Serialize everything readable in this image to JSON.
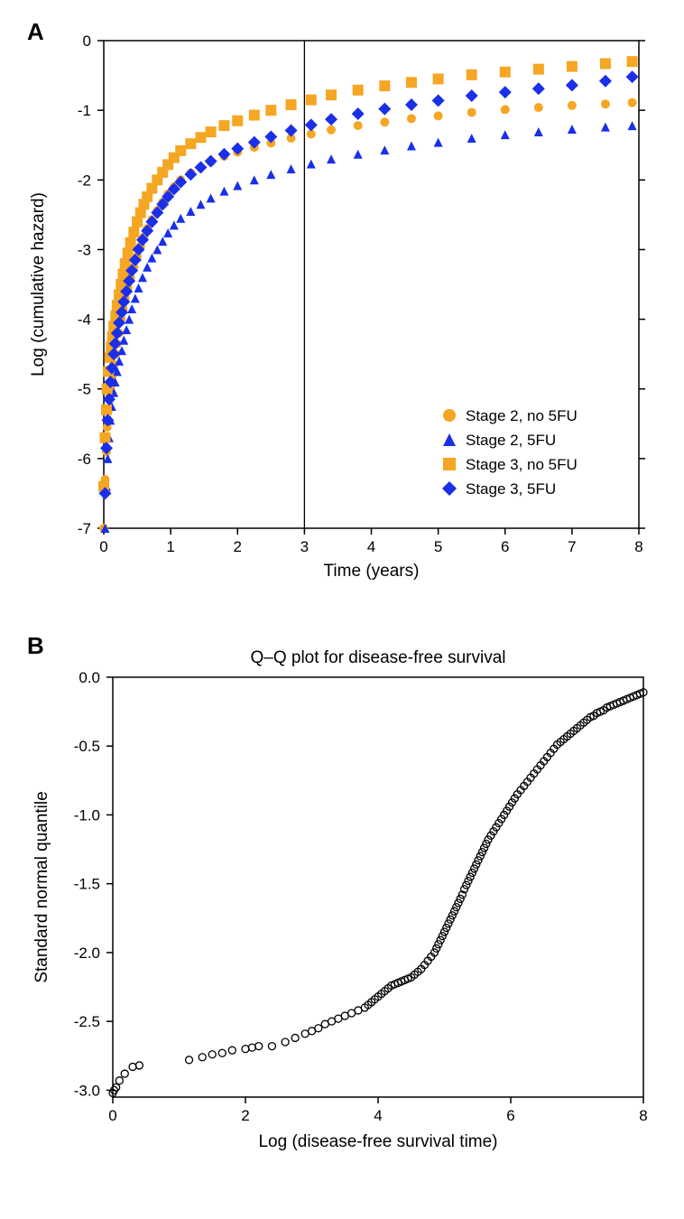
{
  "panelA": {
    "label": "A",
    "type": "scatter-line",
    "xlabel": "Time (years)",
    "ylabel": "Log (cumulative hazard)",
    "xlim": [
      0,
      8
    ],
    "ylim": [
      -7,
      0
    ],
    "xtick_step": 1,
    "ytick_step": 1,
    "background_color": "#ffffff",
    "axis_color": "#000000",
    "vline_x": 3,
    "label_fontsize": 19,
    "tick_fontsize": 17,
    "legend_fontsize": 17,
    "legend_pos": "lower-right",
    "series": [
      {
        "name": "Stage 2, no 5FU",
        "color": "#f5a623",
        "marker": "circle",
        "marker_size": 5,
        "data": [
          [
            0.0,
            -7.0
          ],
          [
            0.02,
            -6.3
          ],
          [
            0.04,
            -5.9
          ],
          [
            0.05,
            -5.55
          ],
          [
            0.07,
            -5.3
          ],
          [
            0.09,
            -5.1
          ],
          [
            0.11,
            -4.95
          ],
          [
            0.13,
            -4.8
          ],
          [
            0.15,
            -4.65
          ],
          [
            0.18,
            -4.5
          ],
          [
            0.2,
            -4.35
          ],
          [
            0.23,
            -4.2
          ],
          [
            0.26,
            -4.0
          ],
          [
            0.29,
            -3.85
          ],
          [
            0.32,
            -3.7
          ],
          [
            0.36,
            -3.55
          ],
          [
            0.4,
            -3.4
          ],
          [
            0.45,
            -3.25
          ],
          [
            0.5,
            -3.1
          ],
          [
            0.55,
            -2.95
          ],
          [
            0.6,
            -2.82
          ],
          [
            0.65,
            -2.7
          ],
          [
            0.72,
            -2.57
          ],
          [
            0.8,
            -2.44
          ],
          [
            0.88,
            -2.32
          ],
          [
            0.96,
            -2.2
          ],
          [
            1.05,
            -2.1
          ],
          [
            1.15,
            -2.0
          ],
          [
            1.3,
            -1.9
          ],
          [
            1.45,
            -1.82
          ],
          [
            1.6,
            -1.74
          ],
          [
            1.8,
            -1.66
          ],
          [
            2.0,
            -1.6
          ],
          [
            2.25,
            -1.53
          ],
          [
            2.5,
            -1.47
          ],
          [
            2.8,
            -1.4
          ],
          [
            3.1,
            -1.34
          ],
          [
            3.4,
            -1.28
          ],
          [
            3.8,
            -1.22
          ],
          [
            4.2,
            -1.17
          ],
          [
            4.6,
            -1.12
          ],
          [
            5.0,
            -1.08
          ],
          [
            5.5,
            -1.03
          ],
          [
            6.0,
            -0.99
          ],
          [
            6.5,
            -0.96
          ],
          [
            7.0,
            -0.93
          ],
          [
            7.5,
            -0.91
          ],
          [
            7.9,
            -0.89
          ]
        ]
      },
      {
        "name": "Stage 2, 5FU",
        "color": "#1a2fe8",
        "marker": "triangle",
        "marker_size": 5,
        "data": [
          [
            0.02,
            -7.0
          ],
          [
            0.04,
            -6.4
          ],
          [
            0.06,
            -6.0
          ],
          [
            0.08,
            -5.7
          ],
          [
            0.1,
            -5.45
          ],
          [
            0.12,
            -5.25
          ],
          [
            0.15,
            -5.05
          ],
          [
            0.17,
            -4.9
          ],
          [
            0.2,
            -4.75
          ],
          [
            0.23,
            -4.6
          ],
          [
            0.27,
            -4.45
          ],
          [
            0.3,
            -4.3
          ],
          [
            0.34,
            -4.15
          ],
          [
            0.38,
            -4.0
          ],
          [
            0.42,
            -3.85
          ],
          [
            0.47,
            -3.7
          ],
          [
            0.52,
            -3.55
          ],
          [
            0.58,
            -3.4
          ],
          [
            0.65,
            -3.25
          ],
          [
            0.72,
            -3.12
          ],
          [
            0.8,
            -3.0
          ],
          [
            0.88,
            -2.88
          ],
          [
            0.96,
            -2.76
          ],
          [
            1.05,
            -2.65
          ],
          [
            1.15,
            -2.55
          ],
          [
            1.3,
            -2.45
          ],
          [
            1.45,
            -2.35
          ],
          [
            1.6,
            -2.26
          ],
          [
            1.8,
            -2.16
          ],
          [
            2.0,
            -2.08
          ],
          [
            2.25,
            -2.0
          ],
          [
            2.5,
            -1.92
          ],
          [
            2.8,
            -1.84
          ],
          [
            3.1,
            -1.77
          ],
          [
            3.4,
            -1.7
          ],
          [
            3.8,
            -1.63
          ],
          [
            4.2,
            -1.57
          ],
          [
            4.6,
            -1.51
          ],
          [
            5.0,
            -1.46
          ],
          [
            5.5,
            -1.4
          ],
          [
            6.0,
            -1.35
          ],
          [
            6.5,
            -1.31
          ],
          [
            7.0,
            -1.27
          ],
          [
            7.5,
            -1.24
          ],
          [
            7.9,
            -1.22
          ]
        ]
      },
      {
        "name": "Stage 3, no 5FU",
        "color": "#f5a623",
        "marker": "square",
        "marker_size": 6,
        "data": [
          [
            0.0,
            -6.4
          ],
          [
            0.02,
            -5.7
          ],
          [
            0.04,
            -5.3
          ],
          [
            0.05,
            -5.0
          ],
          [
            0.07,
            -4.75
          ],
          [
            0.09,
            -4.55
          ],
          [
            0.11,
            -4.4
          ],
          [
            0.13,
            -4.25
          ],
          [
            0.15,
            -4.1
          ],
          [
            0.18,
            -3.95
          ],
          [
            0.2,
            -3.8
          ],
          [
            0.23,
            -3.65
          ],
          [
            0.26,
            -3.5
          ],
          [
            0.29,
            -3.35
          ],
          [
            0.32,
            -3.2
          ],
          [
            0.36,
            -3.05
          ],
          [
            0.4,
            -2.9
          ],
          [
            0.45,
            -2.75
          ],
          [
            0.5,
            -2.6
          ],
          [
            0.55,
            -2.47
          ],
          [
            0.6,
            -2.35
          ],
          [
            0.65,
            -2.24
          ],
          [
            0.72,
            -2.12
          ],
          [
            0.8,
            -2.0
          ],
          [
            0.88,
            -1.89
          ],
          [
            0.96,
            -1.78
          ],
          [
            1.05,
            -1.68
          ],
          [
            1.15,
            -1.58
          ],
          [
            1.3,
            -1.48
          ],
          [
            1.45,
            -1.39
          ],
          [
            1.6,
            -1.31
          ],
          [
            1.8,
            -1.22
          ],
          [
            2.0,
            -1.15
          ],
          [
            2.25,
            -1.07
          ],
          [
            2.5,
            -1.0
          ],
          [
            2.8,
            -0.92
          ],
          [
            3.1,
            -0.85
          ],
          [
            3.4,
            -0.78
          ],
          [
            3.8,
            -0.71
          ],
          [
            4.2,
            -0.65
          ],
          [
            4.6,
            -0.6
          ],
          [
            5.0,
            -0.55
          ],
          [
            5.5,
            -0.49
          ],
          [
            6.0,
            -0.45
          ],
          [
            6.5,
            -0.41
          ],
          [
            7.0,
            -0.37
          ],
          [
            7.5,
            -0.33
          ],
          [
            7.9,
            -0.3
          ]
        ]
      },
      {
        "name": "Stage 3, 5FU",
        "color": "#1a2fe8",
        "marker": "diamond",
        "marker_size": 7,
        "data": [
          [
            0.02,
            -6.5
          ],
          [
            0.04,
            -5.85
          ],
          [
            0.06,
            -5.45
          ],
          [
            0.08,
            -5.15
          ],
          [
            0.1,
            -4.9
          ],
          [
            0.12,
            -4.7
          ],
          [
            0.15,
            -4.5
          ],
          [
            0.17,
            -4.35
          ],
          [
            0.2,
            -4.2
          ],
          [
            0.23,
            -4.05
          ],
          [
            0.27,
            -3.9
          ],
          [
            0.3,
            -3.75
          ],
          [
            0.34,
            -3.6
          ],
          [
            0.38,
            -3.45
          ],
          [
            0.42,
            -3.3
          ],
          [
            0.47,
            -3.15
          ],
          [
            0.52,
            -3.0
          ],
          [
            0.58,
            -2.86
          ],
          [
            0.65,
            -2.73
          ],
          [
            0.72,
            -2.6
          ],
          [
            0.8,
            -2.47
          ],
          [
            0.88,
            -2.35
          ],
          [
            0.96,
            -2.24
          ],
          [
            1.05,
            -2.13
          ],
          [
            1.15,
            -2.03
          ],
          [
            1.3,
            -1.92
          ],
          [
            1.45,
            -1.82
          ],
          [
            1.6,
            -1.73
          ],
          [
            1.8,
            -1.63
          ],
          [
            2.0,
            -1.55
          ],
          [
            2.25,
            -1.46
          ],
          [
            2.5,
            -1.38
          ],
          [
            2.8,
            -1.29
          ],
          [
            3.1,
            -1.21
          ],
          [
            3.4,
            -1.13
          ],
          [
            3.8,
            -1.05
          ],
          [
            4.2,
            -0.98
          ],
          [
            4.6,
            -0.92
          ],
          [
            5.0,
            -0.86
          ],
          [
            5.5,
            -0.79
          ],
          [
            6.0,
            -0.74
          ],
          [
            6.5,
            -0.69
          ],
          [
            7.0,
            -0.64
          ],
          [
            7.5,
            -0.58
          ],
          [
            7.9,
            -0.52
          ]
        ]
      }
    ],
    "legend": [
      {
        "label": "Stage 2, no 5FU",
        "color": "#f5a623",
        "marker": "circle",
        "size": 7
      },
      {
        "label": "Stage 2, 5FU",
        "color": "#1a2fe8",
        "marker": "triangle",
        "size": 7
      },
      {
        "label": "Stage 3, no 5FU",
        "color": "#f5a623",
        "marker": "square",
        "size": 7
      },
      {
        "label": "Stage 3, 5FU",
        "color": "#1a2fe8",
        "marker": "diamond",
        "size": 8
      }
    ]
  },
  "panelB": {
    "label": "B",
    "type": "qq-plot",
    "title": "Q–Q plot for disease-free survival",
    "xlabel": "Log (disease-free survival time)",
    "ylabel": "Standard normal quantile",
    "xlim": [
      0,
      8
    ],
    "ylim": [
      -3.05,
      0
    ],
    "xticks": [
      0,
      2,
      4,
      6,
      8
    ],
    "yticks": [
      0.0,
      -0.5,
      -1.0,
      -1.5,
      -2.0,
      -2.5,
      -3.0
    ],
    "background_color": "#ffffff",
    "axis_color": "#000000",
    "marker": "open-circle",
    "marker_color": "#000000",
    "marker_size": 4,
    "label_fontsize": 19,
    "tick_fontsize": 17,
    "title_fontsize": 19,
    "data": [
      [
        0.0,
        -3.02
      ],
      [
        0.02,
        -3.0
      ],
      [
        0.05,
        -2.98
      ],
      [
        0.1,
        -2.93
      ],
      [
        0.18,
        -2.88
      ],
      [
        0.3,
        -2.83
      ],
      [
        0.4,
        -2.82
      ],
      [
        1.15,
        -2.78
      ],
      [
        1.35,
        -2.76
      ],
      [
        1.5,
        -2.74
      ],
      [
        1.65,
        -2.73
      ],
      [
        1.8,
        -2.71
      ],
      [
        2.0,
        -2.7
      ],
      [
        2.1,
        -2.69
      ],
      [
        2.2,
        -2.68
      ],
      [
        2.4,
        -2.68
      ],
      [
        2.6,
        -2.65
      ],
      [
        2.75,
        -2.62
      ],
      [
        2.9,
        -2.59
      ],
      [
        3.0,
        -2.57
      ],
      [
        3.1,
        -2.55
      ],
      [
        3.2,
        -2.52
      ],
      [
        3.3,
        -2.5
      ],
      [
        3.4,
        -2.48
      ],
      [
        3.5,
        -2.46
      ],
      [
        3.6,
        -2.44
      ],
      [
        3.7,
        -2.42
      ],
      [
        3.8,
        -2.4
      ],
      [
        3.85,
        -2.38
      ],
      [
        3.9,
        -2.36
      ],
      [
        3.95,
        -2.34
      ],
      [
        4.0,
        -2.32
      ],
      [
        4.05,
        -2.3
      ],
      [
        4.1,
        -2.28
      ],
      [
        4.15,
        -2.26
      ],
      [
        4.2,
        -2.24
      ],
      [
        4.25,
        -2.23
      ],
      [
        4.3,
        -2.22
      ],
      [
        4.35,
        -2.21
      ],
      [
        4.4,
        -2.2
      ],
      [
        4.45,
        -2.19
      ],
      [
        4.5,
        -2.18
      ],
      [
        4.55,
        -2.16
      ],
      [
        4.6,
        -2.14
      ],
      [
        4.65,
        -2.12
      ],
      [
        4.7,
        -2.09
      ],
      [
        4.75,
        -2.06
      ],
      [
        4.8,
        -2.03
      ],
      [
        4.85,
        -2.0
      ],
      [
        4.88,
        -1.97
      ],
      [
        4.91,
        -1.94
      ],
      [
        4.94,
        -1.91
      ],
      [
        4.97,
        -1.88
      ],
      [
        5.0,
        -1.85
      ],
      [
        5.03,
        -1.82
      ],
      [
        5.06,
        -1.79
      ],
      [
        5.09,
        -1.76
      ],
      [
        5.12,
        -1.73
      ],
      [
        5.15,
        -1.7
      ],
      [
        5.18,
        -1.67
      ],
      [
        5.21,
        -1.64
      ],
      [
        5.24,
        -1.61
      ],
      [
        5.27,
        -1.58
      ],
      [
        5.3,
        -1.54
      ],
      [
        5.33,
        -1.51
      ],
      [
        5.36,
        -1.48
      ],
      [
        5.39,
        -1.45
      ],
      [
        5.42,
        -1.42
      ],
      [
        5.45,
        -1.39
      ],
      [
        5.48,
        -1.36
      ],
      [
        5.51,
        -1.33
      ],
      [
        5.54,
        -1.3
      ],
      [
        5.57,
        -1.27
      ],
      [
        5.6,
        -1.24
      ],
      [
        5.63,
        -1.21
      ],
      [
        5.66,
        -1.18
      ],
      [
        5.7,
        -1.15
      ],
      [
        5.74,
        -1.12
      ],
      [
        5.78,
        -1.09
      ],
      [
        5.82,
        -1.06
      ],
      [
        5.86,
        -1.03
      ],
      [
        5.9,
        -1.0
      ],
      [
        5.94,
        -0.97
      ],
      [
        5.98,
        -0.94
      ],
      [
        6.02,
        -0.91
      ],
      [
        6.06,
        -0.88
      ],
      [
        6.1,
        -0.85
      ],
      [
        6.15,
        -0.82
      ],
      [
        6.2,
        -0.79
      ],
      [
        6.25,
        -0.76
      ],
      [
        6.3,
        -0.73
      ],
      [
        6.35,
        -0.7
      ],
      [
        6.4,
        -0.67
      ],
      [
        6.45,
        -0.64
      ],
      [
        6.5,
        -0.61
      ],
      [
        6.55,
        -0.58
      ],
      [
        6.6,
        -0.55
      ],
      [
        6.65,
        -0.52
      ],
      [
        6.7,
        -0.49
      ],
      [
        6.75,
        -0.47
      ],
      [
        6.8,
        -0.45
      ],
      [
        6.85,
        -0.43
      ],
      [
        6.9,
        -0.41
      ],
      [
        6.95,
        -0.39
      ],
      [
        7.0,
        -0.37
      ],
      [
        7.05,
        -0.35
      ],
      [
        7.1,
        -0.33
      ],
      [
        7.15,
        -0.31
      ],
      [
        7.2,
        -0.29
      ],
      [
        7.25,
        -0.28
      ],
      [
        7.3,
        -0.26
      ],
      [
        7.35,
        -0.25
      ],
      [
        7.4,
        -0.24
      ],
      [
        7.45,
        -0.22
      ],
      [
        7.5,
        -0.21
      ],
      [
        7.55,
        -0.2
      ],
      [
        7.6,
        -0.19
      ],
      [
        7.65,
        -0.18
      ],
      [
        7.7,
        -0.17
      ],
      [
        7.75,
        -0.16
      ],
      [
        7.8,
        -0.15
      ],
      [
        7.85,
        -0.14
      ],
      [
        7.9,
        -0.13
      ],
      [
        7.95,
        -0.12
      ],
      [
        8.0,
        -0.11
      ]
    ]
  }
}
